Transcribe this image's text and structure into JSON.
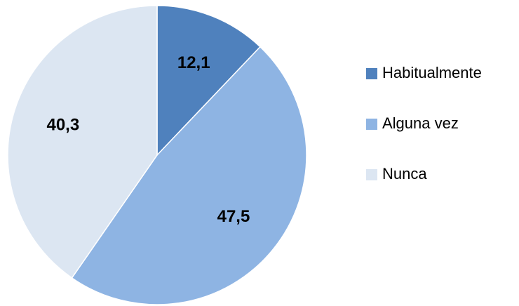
{
  "chart_data": {
    "type": "pie",
    "categories": [
      "Habitualmente",
      "Alguna vez",
      "Nunca"
    ],
    "values": [
      12.1,
      47.5,
      40.3
    ],
    "value_labels": [
      "12,1",
      "47,5",
      "40,3"
    ],
    "colors": [
      "#4f81bd",
      "#8eb4e3",
      "#dce6f2"
    ],
    "legend": "right"
  }
}
